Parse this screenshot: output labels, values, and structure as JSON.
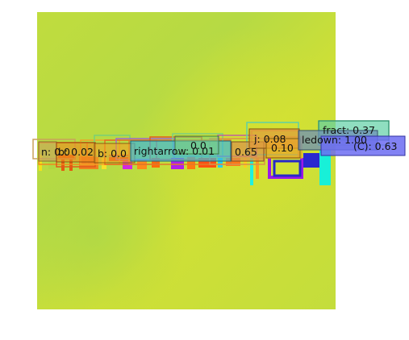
{
  "image": {
    "background_colors": [
      "#c3dd3a",
      "#b3db44",
      "#d8e12f",
      "#a8d748"
    ],
    "detections": [
      {
        "label": "n: 0.0",
        "color": "#c9a25b"
      },
      {
        "label": "b: 0.02",
        "color": "#f08a1e"
      },
      {
        "label": "b: 0.0",
        "color": "#f2a025"
      },
      {
        "label": "rightarrow: 0.01",
        "color": "#3fb8d8"
      },
      {
        "label": "0.65",
        "color": "#d9914a"
      },
      {
        "label": "j: 0.08",
        "color": "#e09a3c"
      },
      {
        "label": "0.10",
        "color": "#e8a12a"
      },
      {
        "label": "fract: 0.37",
        "color": "#5fd0a5"
      },
      {
        "label": "ledown: 1.00",
        "color": "#6e8fb8"
      },
      {
        "label": "(C): 0.63",
        "color": "#6c6cf2"
      },
      {
        "label": "0.0",
        "color": "#7ad080"
      }
    ]
  }
}
